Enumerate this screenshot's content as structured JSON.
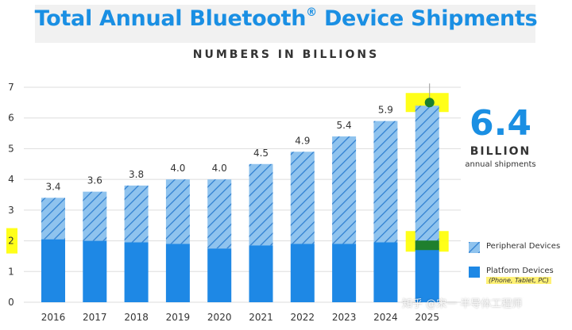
{
  "header": {
    "title": "Total Annual Bluetooth",
    "title_mark": "®",
    "title_end": " Device Shipments",
    "subtitle": "NUMBERS IN BILLIONS"
  },
  "callout": {
    "value": "6.4",
    "unit": "BILLION",
    "description": "annual shipments"
  },
  "legend": {
    "peripheral": "Peripheral Devices",
    "platform": "Platform Devices",
    "platform_note": "(Phone, Tablet, PC)"
  },
  "watermark": "知乎 @宋一 半导体工程师",
  "colors": {
    "platform": "#1e88e5",
    "peripheral_fill": "#8fc3ee",
    "peripheral_hatch": "#2f7fd0",
    "grid": "#dddddd",
    "highlight": "#ffff00",
    "marker": "#1b7f2e",
    "platform_highlight": "#1f7f2d"
  },
  "chart_data": {
    "type": "bar",
    "stacked": true,
    "categories": [
      "2016",
      "2017",
      "2018",
      "2019",
      "2020",
      "2021",
      "2022",
      "2023",
      "2024",
      "2025"
    ],
    "series": [
      {
        "name": "Platform Devices",
        "values": [
          2.05,
          2.0,
          1.95,
          1.9,
          1.75,
          1.85,
          1.9,
          1.9,
          1.95,
          1.75
        ]
      },
      {
        "name": "Peripheral Devices",
        "values": [
          1.35,
          1.6,
          1.85,
          2.1,
          2.25,
          2.65,
          3.0,
          3.5,
          3.95,
          4.65
        ]
      }
    ],
    "totals": [
      3.4,
      3.6,
      3.8,
      4.0,
      4.0,
      4.5,
      4.9,
      5.4,
      5.9,
      6.4
    ],
    "total_labels": [
      "3.4",
      "3.6",
      "3.8",
      "4.0",
      "4.0",
      "4.5",
      "4.9",
      "5.4",
      "5.9",
      ""
    ],
    "yticks": [
      "0",
      "1",
      "2",
      "3",
      "4",
      "5",
      "6",
      "7"
    ],
    "ylim": [
      0,
      7
    ],
    "grid": true,
    "legend_position": "right",
    "highlighted_category": "2025"
  }
}
